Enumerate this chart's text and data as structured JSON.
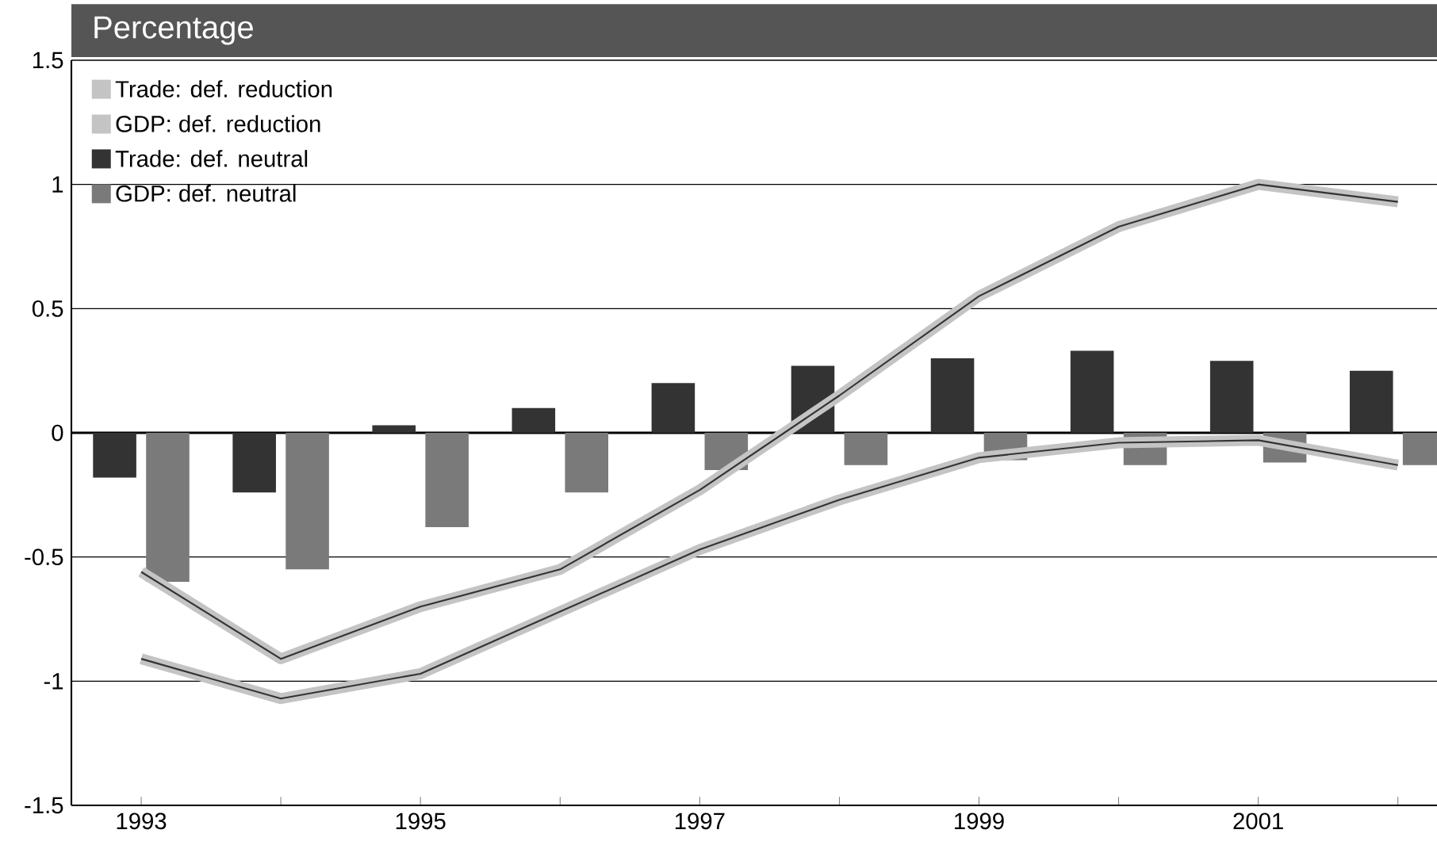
{
  "chart_data": {
    "type": "bar",
    "title": "Percentage",
    "categories": [
      "1993",
      null,
      "1995",
      null,
      "1997",
      null,
      "1999",
      null,
      "2001",
      null
    ],
    "series": [
      {
        "name": "Trade: def. reduction",
        "type": "line",
        "color": "#c4c4c4",
        "values": [
          -0.56,
          -0.91,
          -0.7,
          -0.55,
          -0.23,
          0.15,
          0.55,
          0.83,
          1.0,
          0.93
        ]
      },
      {
        "name": "GDP: def. reduction",
        "type": "line",
        "color": "#c4c4c4",
        "values": [
          -0.91,
          -1.07,
          -0.97,
          -0.72,
          -0.47,
          -0.27,
          -0.1,
          -0.04,
          -0.03,
          -0.13
        ]
      },
      {
        "name": "Trade: def. neutral",
        "color": "#333333",
        "values": [
          -0.18,
          -0.24,
          0.03,
          0.1,
          0.2,
          0.27,
          0.3,
          0.33,
          0.29,
          0.25
        ]
      },
      {
        "name": "GDP: def. neutral",
        "color": "#7a7a7a",
        "values": [
          -0.6,
          -0.55,
          -0.38,
          -0.24,
          -0.15,
          -0.13,
          -0.11,
          -0.13,
          -0.12,
          -0.13
        ]
      }
    ],
    "ylim": [
      -1.5,
      1.5
    ],
    "yticks": [
      -1.5,
      -1,
      -0.5,
      0,
      0.5,
      1,
      1.5
    ],
    "grid": "y",
    "legend": "top left"
  }
}
